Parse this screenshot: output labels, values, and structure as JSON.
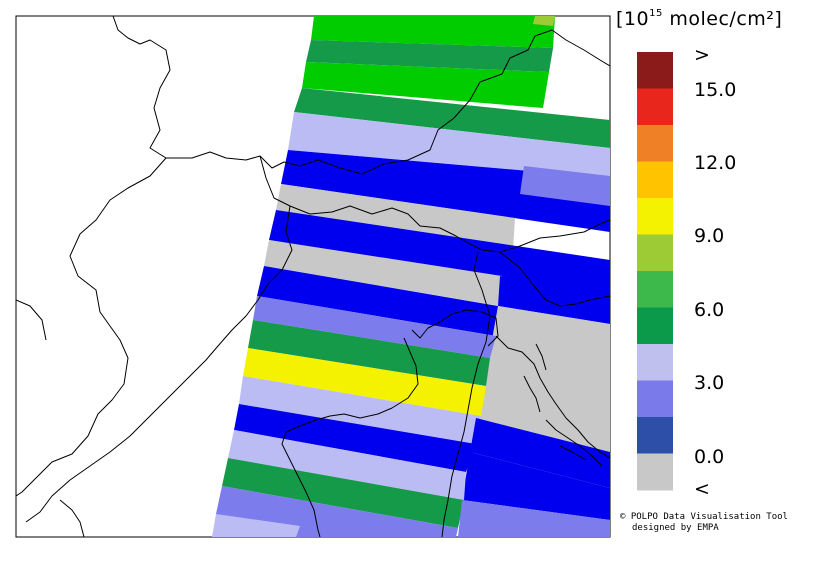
{
  "legend": {
    "unit_prefix": "[10",
    "unit_exp": "15",
    "unit_suffix": " molec/cm²]",
    "ticks": [
      ">",
      "15.0",
      "12.0",
      "9.0",
      "6.0",
      "3.0",
      "0.0",
      "<"
    ],
    "bins": [
      {
        "color": "#8b1a1a"
      },
      {
        "color": "#e8261c"
      },
      {
        "color": "#f08026"
      },
      {
        "color": "#ffc300"
      },
      {
        "color": "#f5f200"
      },
      {
        "color": "#9ccb35"
      },
      {
        "color": "#3db84b"
      },
      {
        "color": "#0b9a4a"
      },
      {
        "color": "#c0c0ee"
      },
      {
        "color": "#7a7aea"
      },
      {
        "color": "#2e4fa8"
      },
      {
        "color": "#c8c8c8"
      }
    ]
  },
  "credits": {
    "line1": "© POLPO Data Visualisation Tool",
    "line2": "designed by EMPA"
  },
  "swath_colors": {
    "bright_green": "#00cc00",
    "green": "#149a49",
    "yellow": "#f5f200",
    "pale_blue": "#bcbcf4",
    "mid_blue": "#7c7cec",
    "blue": "#0000ee",
    "grey": "#c8c8c8"
  },
  "map": {
    "region": "Alps / Northern Italy / Adriatic",
    "pixels": [
      {
        "class": "green",
        "color": "bright_green"
      },
      {
        "class": "green",
        "color": "green"
      },
      {
        "class": "green",
        "color": "bright_green"
      },
      {
        "class": "green",
        "color": "green"
      },
      {
        "class": "pale",
        "color": "pale_blue"
      },
      {
        "class": "blue",
        "color": "blue"
      },
      {
        "class": "grey",
        "color": "grey"
      },
      {
        "class": "blue",
        "color": "blue"
      },
      {
        "class": "grey",
        "color": "grey"
      },
      {
        "class": "blue",
        "color": "blue"
      },
      {
        "class": "mid",
        "color": "mid_blue"
      },
      {
        "class": "green",
        "color": "green"
      },
      {
        "class": "yellow",
        "color": "yellow"
      },
      {
        "class": "pale",
        "color": "pale_blue"
      },
      {
        "class": "blue",
        "color": "blue"
      },
      {
        "class": "pale",
        "color": "pale_blue"
      },
      {
        "class": "green",
        "color": "green"
      },
      {
        "class": "mid",
        "color": "mid_blue"
      },
      {
        "class": "pale",
        "color": "pale_blue"
      }
    ]
  }
}
